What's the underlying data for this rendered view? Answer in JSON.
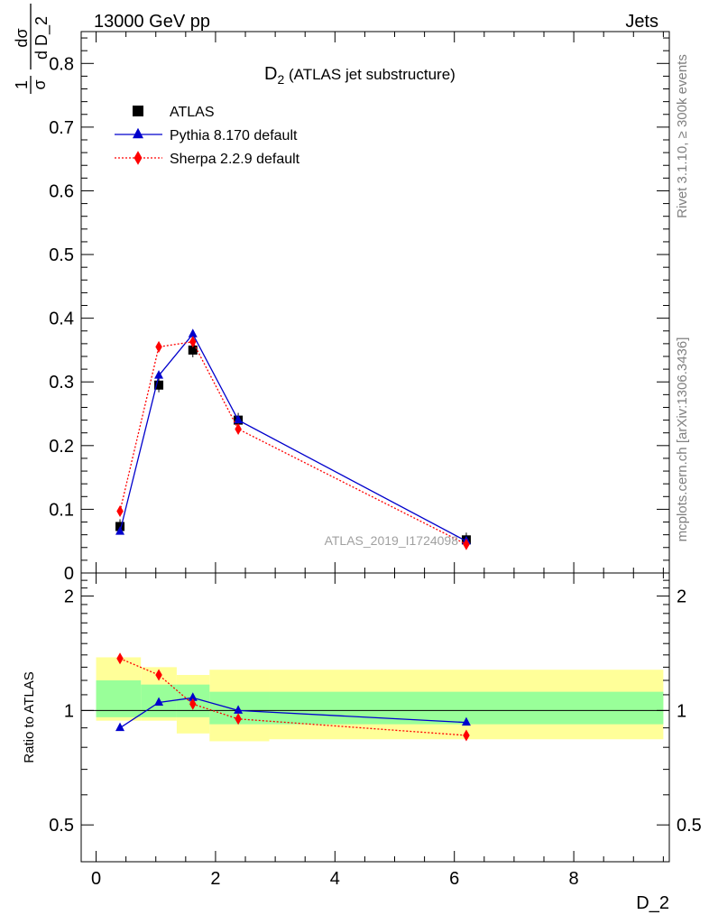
{
  "header": {
    "left": "13000 GeV pp",
    "right": "Jets"
  },
  "side_text": {
    "rivet": "Rivet 3.1.10, ≥ 300k events",
    "mcplots": "mcplots.cern.ch [arXiv:1306.3436]"
  },
  "watermark": "ATLAS_2019_I1724098",
  "colors": {
    "atlas": "#000000",
    "pythia": "#0000cc",
    "sherpa": "#ff0000",
    "band_inner": "#99ff99",
    "band_outer": "#ffff99"
  },
  "chart_data": [
    {
      "type": "scatter",
      "title": "D2 (ATLAS jet substructure)",
      "title_main": "D",
      "title_sub": "2",
      "title_rest": " (ATLAS jet substructure)",
      "ylabel": "1/σ dσ/d D_2",
      "ylabel_parts": {
        "frac1_num": "1",
        "frac1_den": "σ",
        "frac2_num": "dσ",
        "frac2_den": "d D_2"
      },
      "xlim": [
        -0.25,
        9.6
      ],
      "ylim": [
        0,
        0.85
      ],
      "yticks": [
        "0",
        "0.1",
        "0.2",
        "0.3",
        "0.4",
        "0.5",
        "0.6",
        "0.7",
        "0.8"
      ],
      "legend_position": "top-left",
      "series": [
        {
          "name": "ATLAS",
          "marker": "square",
          "x": [
            0.4,
            1.05,
            1.62,
            2.38,
            6.2
          ],
          "y": [
            0.073,
            0.295,
            0.35,
            0.24,
            0.052
          ]
        },
        {
          "name": "Pythia 8.170 default",
          "marker": "triangle",
          "line": "solid",
          "x": [
            0.4,
            1.05,
            1.62,
            2.38,
            6.2
          ],
          "y": [
            0.065,
            0.31,
            0.375,
            0.24,
            0.05
          ]
        },
        {
          "name": "Sherpa 2.2.9 default",
          "marker": "diamond",
          "line": "dotted",
          "x": [
            0.4,
            1.05,
            1.62,
            2.38,
            6.2
          ],
          "y": [
            0.097,
            0.355,
            0.363,
            0.226,
            0.045
          ]
        }
      ]
    },
    {
      "type": "line",
      "ylabel": "Ratio to ATLAS",
      "xlabel": "D_2",
      "xlim": [
        -0.25,
        9.6
      ],
      "ylim": [
        0.4,
        2.3
      ],
      "log_y": true,
      "yticks": [
        "0.5",
        "1",
        "2"
      ],
      "xticks": [
        "0",
        "2",
        "4",
        "6",
        "8"
      ],
      "bands": [
        {
          "x0": 0.0,
          "x1": 0.75,
          "inner": [
            0.96,
            1.2
          ],
          "outer": [
            0.94,
            1.38
          ]
        },
        {
          "x0": 0.75,
          "x1": 1.35,
          "inner": [
            0.96,
            1.17
          ],
          "outer": [
            0.94,
            1.3
          ]
        },
        {
          "x0": 1.35,
          "x1": 1.9,
          "inner": [
            0.96,
            1.17
          ],
          "outer": [
            0.87,
            1.24
          ]
        },
        {
          "x0": 1.9,
          "x1": 2.9,
          "inner": [
            0.92,
            1.12
          ],
          "outer": [
            0.83,
            1.28
          ]
        },
        {
          "x0": 2.9,
          "x1": 9.5,
          "inner": [
            0.92,
            1.12
          ],
          "outer": [
            0.84,
            1.28
          ]
        }
      ],
      "series": [
        {
          "name": "Pythia 8.170 default",
          "x": [
            0.4,
            1.05,
            1.62,
            2.38,
            6.2
          ],
          "y": [
            0.9,
            1.05,
            1.08,
            1.0,
            0.93
          ]
        },
        {
          "name": "Sherpa 2.2.9 default",
          "x": [
            0.4,
            1.05,
            1.62,
            2.38,
            6.2
          ],
          "y": [
            1.37,
            1.24,
            1.04,
            0.95,
            0.86
          ]
        }
      ]
    }
  ]
}
